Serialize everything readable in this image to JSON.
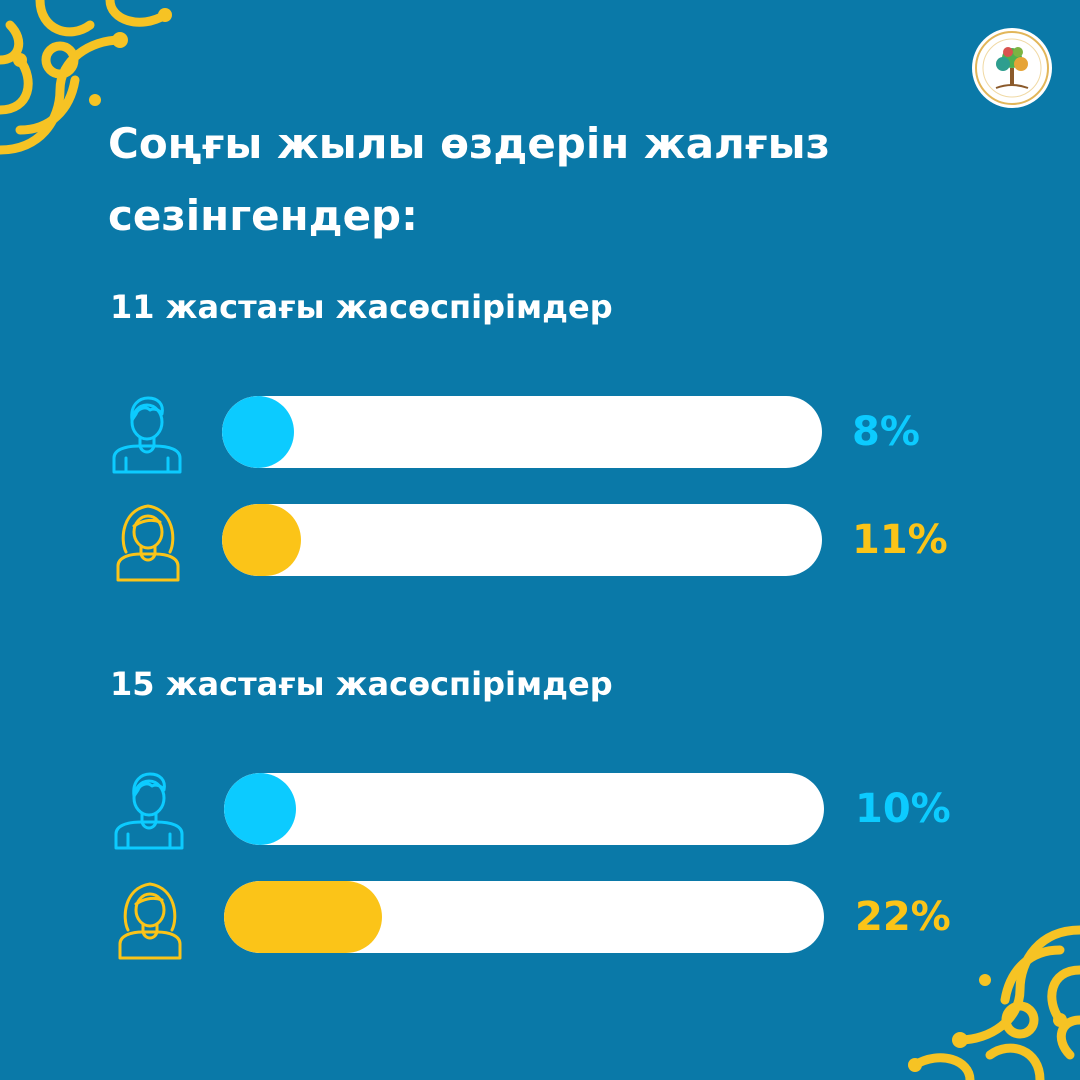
{
  "title": "Соңғы жылы өздерін жалғыз сезінгендер:",
  "colors": {
    "background": "#0a79a8",
    "boy": "#0ccbff",
    "girl": "#fbc418",
    "track": "#ffffff",
    "ornament": "#f6c324"
  },
  "icons": {
    "boy": "boy-person-icon",
    "girl": "girl-person-icon",
    "logo": "organization-tree-logo-icon",
    "ornament": "kazakh-ornament-icon"
  },
  "chart_data": {
    "type": "bar",
    "orientation": "horizontal",
    "xlim": [
      0,
      100
    ],
    "groups": [
      {
        "label": "11 жастағы жасөспірімдер",
        "series": [
          {
            "gender": "boy",
            "value": 8,
            "label": "8%"
          },
          {
            "gender": "girl",
            "value": 11,
            "label": "11%"
          }
        ]
      },
      {
        "label": "15 жастағы жасөспірімдер",
        "series": [
          {
            "gender": "boy",
            "value": 10,
            "label": "10%"
          },
          {
            "gender": "girl",
            "value": 22,
            "label": "22%"
          }
        ]
      }
    ]
  }
}
